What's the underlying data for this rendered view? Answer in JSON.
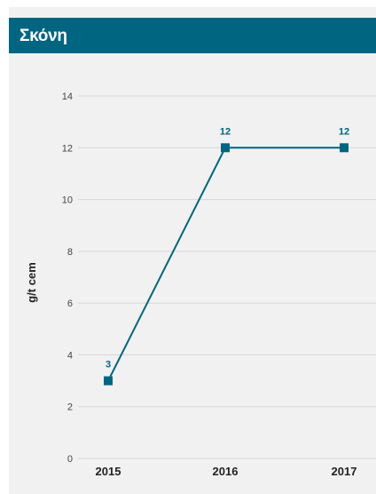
{
  "header": {
    "title": "Σκόνη"
  },
  "colors": {
    "accent": "#006581",
    "background": "#f1f1f1",
    "grid": "#d6d6d6"
  },
  "chart_data": {
    "type": "line",
    "title": "Σκόνη",
    "xlabel": "",
    "ylabel": "g/t cem",
    "categories": [
      "2015",
      "2016",
      "2017"
    ],
    "series": [
      {
        "values": [
          3,
          12,
          12
        ],
        "data_labels": [
          "3",
          "12",
          "12"
        ],
        "marker": "square"
      }
    ],
    "ylim": [
      0,
      14
    ],
    "yticks": [
      0,
      2,
      4,
      6,
      8,
      10,
      12,
      14
    ],
    "ytick_labels": [
      "0",
      "2",
      "4",
      "6",
      "8",
      "10",
      "12",
      "14"
    ],
    "grid": true,
    "legend": "none"
  }
}
